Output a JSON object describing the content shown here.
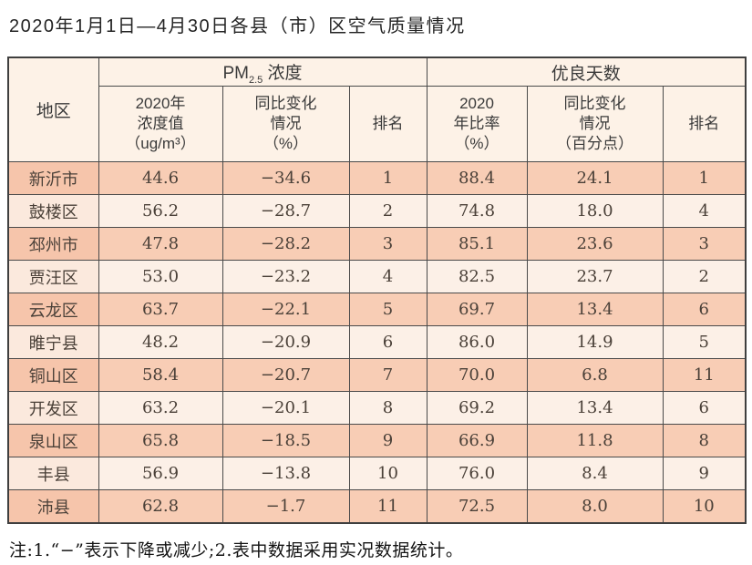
{
  "page": {
    "title": "2020年1月1日—4月30日各县（市）区空气质量情况",
    "note": "注:1.“−”表示下降或减少;2.表中数据采用实况数据统计。"
  },
  "table": {
    "header": {
      "region": "地区",
      "pm_prefix": "PM",
      "pm_sub": "2.5",
      "pm_suffix": " 浓度",
      "good_group": "优良天数",
      "pm_value": "2020年\n浓度值\n（ug/m³）",
      "pm_change": "同比变化\n情况\n（%）",
      "pm_rank": "排名",
      "good_rate": "2020\n年比率\n（%）",
      "good_change": "同比变化\n情况\n（百分点）",
      "good_rank": "排名"
    },
    "rows": [
      {
        "region": "新沂市",
        "pm_value": "44.6",
        "pm_change": "−34.6",
        "pm_rank": "1",
        "good_rate": "88.4",
        "good_change": "24.1",
        "good_rank": "1"
      },
      {
        "region": "鼓楼区",
        "pm_value": "56.2",
        "pm_change": "−28.7",
        "pm_rank": "2",
        "good_rate": "74.8",
        "good_change": "18.0",
        "good_rank": "4"
      },
      {
        "region": "邳州市",
        "pm_value": "47.8",
        "pm_change": "−28.2",
        "pm_rank": "3",
        "good_rate": "85.1",
        "good_change": "23.6",
        "good_rank": "3"
      },
      {
        "region": "贾汪区",
        "pm_value": "53.0",
        "pm_change": "−23.2",
        "pm_rank": "4",
        "good_rate": "82.5",
        "good_change": "23.7",
        "good_rank": "2"
      },
      {
        "region": "云龙区",
        "pm_value": "63.7",
        "pm_change": "−22.1",
        "pm_rank": "5",
        "good_rate": "69.7",
        "good_change": "13.4",
        "good_rank": "6"
      },
      {
        "region": "睢宁县",
        "pm_value": "48.2",
        "pm_change": "−20.9",
        "pm_rank": "6",
        "good_rate": "86.0",
        "good_change": "14.9",
        "good_rank": "5"
      },
      {
        "region": "铜山区",
        "pm_value": "58.4",
        "pm_change": "−20.7",
        "pm_rank": "7",
        "good_rate": "70.0",
        "good_change": "6.8",
        "good_rank": "11"
      },
      {
        "region": "开发区",
        "pm_value": "63.2",
        "pm_change": "−20.1",
        "pm_rank": "8",
        "good_rate": "69.2",
        "good_change": "13.4",
        "good_rank": "6"
      },
      {
        "region": "泉山区",
        "pm_value": "65.8",
        "pm_change": "−18.5",
        "pm_rank": "9",
        "good_rate": "66.9",
        "good_change": "11.8",
        "good_rank": "8"
      },
      {
        "region": "丰县",
        "pm_value": "56.9",
        "pm_change": "−13.8",
        "pm_rank": "10",
        "good_rate": "76.0",
        "good_change": "8.4",
        "good_rank": "9"
      },
      {
        "region": "沛县",
        "pm_value": "62.8",
        "pm_change": "−1.7",
        "pm_rank": "11",
        "good_rate": "72.5",
        "good_change": "8.0",
        "good_rank": "10"
      }
    ]
  },
  "colors": {
    "row_odd": "#f8cdb5",
    "row_even": "#fcf0e7",
    "header_bg": "#fdf2e7",
    "border": "#4a4a4a"
  },
  "chart_data": {
    "type": "table",
    "title": "2020年1月1日—4月30日各县（市）区空气质量情况",
    "column_groups": [
      "地区",
      "PM2.5浓度",
      "优良天数"
    ],
    "columns": [
      "地区",
      "2020年浓度值（ug/m³）",
      "同比变化情况（%）",
      "排名",
      "2020年比率（%）",
      "同比变化情况（百分点）",
      "排名"
    ],
    "rows": [
      [
        "新沂市",
        44.6,
        -34.6,
        1,
        88.4,
        24.1,
        1
      ],
      [
        "鼓楼区",
        56.2,
        -28.7,
        2,
        74.8,
        18.0,
        4
      ],
      [
        "邳州市",
        47.8,
        -28.2,
        3,
        85.1,
        23.6,
        3
      ],
      [
        "贾汪区",
        53.0,
        -23.2,
        4,
        82.5,
        23.7,
        2
      ],
      [
        "云龙区",
        63.7,
        -22.1,
        5,
        69.7,
        13.4,
        6
      ],
      [
        "睢宁县",
        48.2,
        -20.9,
        6,
        86.0,
        14.9,
        5
      ],
      [
        "铜山区",
        58.4,
        -20.7,
        7,
        70.0,
        6.8,
        11
      ],
      [
        "开发区",
        63.2,
        -20.1,
        8,
        69.2,
        13.4,
        6
      ],
      [
        "泉山区",
        65.8,
        -18.5,
        9,
        66.9,
        11.8,
        8
      ],
      [
        "丰县",
        56.9,
        -13.8,
        10,
        76.0,
        8.4,
        9
      ],
      [
        "沛县",
        62.8,
        -1.7,
        11,
        72.5,
        8.0,
        10
      ]
    ],
    "note": "注:1.“−”表示下降或减少;2.表中数据采用实况数据统计。"
  }
}
